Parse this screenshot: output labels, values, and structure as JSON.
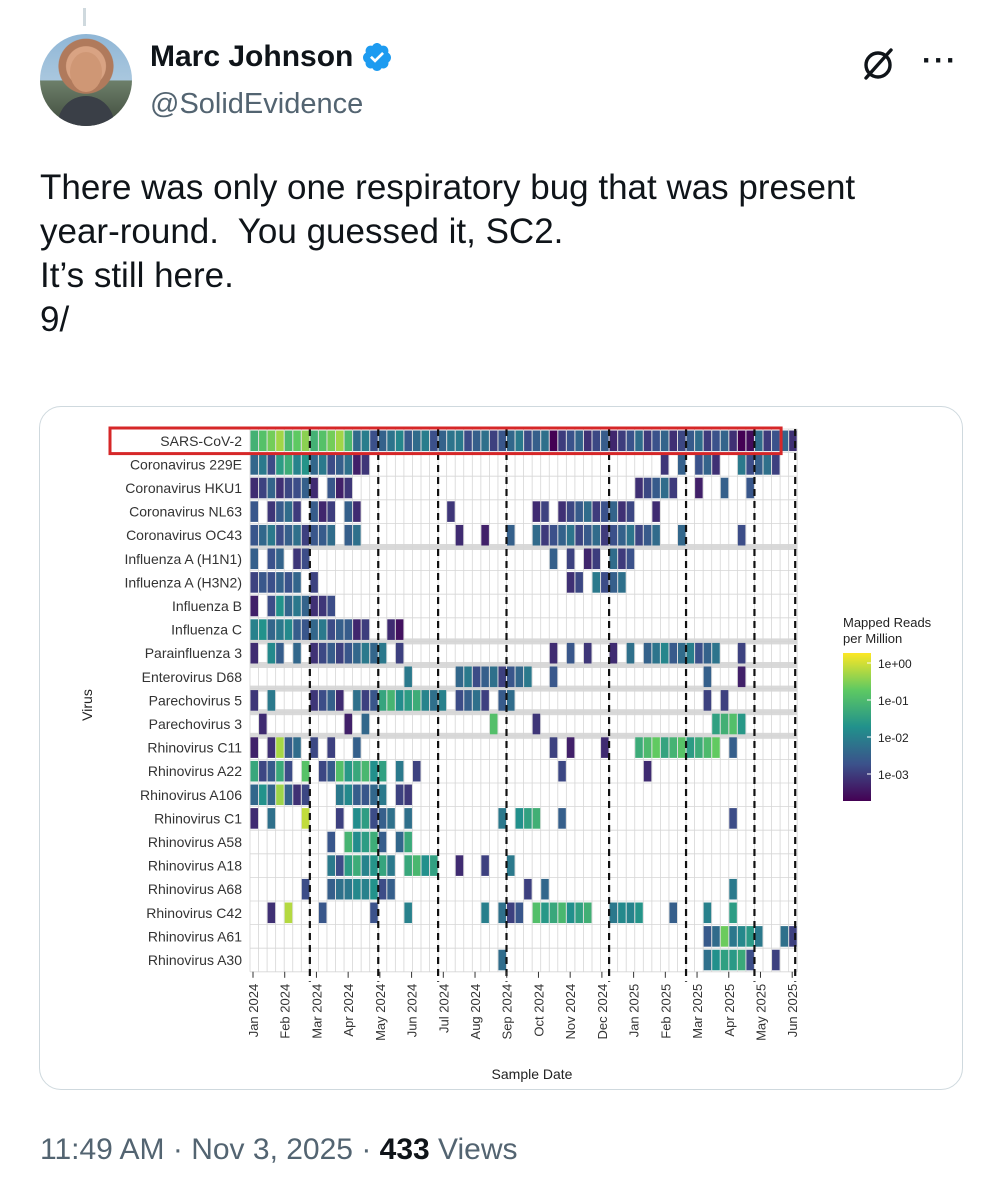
{
  "author": {
    "name": "Marc Johnson",
    "handle": "@SolidEvidence",
    "verified": true,
    "accent_color": "#1d9bf0"
  },
  "icons": {
    "grok": "grok-slash-icon",
    "more": "more-dots-icon"
  },
  "more_label": "···",
  "tweet": {
    "lines": [
      "There was only one respiratory bug that was present",
      "year-round.  You guessed it, SC2.",
      "It’s still here.",
      "9/"
    ]
  },
  "meta": {
    "time": "11:49 AM",
    "sep1": " · ",
    "date": "Nov 3, 2025",
    "sep2": " · ",
    "views_count": "433",
    "views_label": " Views"
  },
  "chart_data": {
    "type": "heatmap",
    "xlabel": "Sample Date",
    "ylabel": "Virus",
    "legend_title_line1": "Mapped Reads",
    "legend_title_line2": "per Million",
    "legend_ticks": [
      "1e+00",
      "1e-01",
      "1e-02",
      "1e-03"
    ],
    "highlighted_row": "SARS-CoV-2",
    "viruses": [
      "SARS-CoV-2",
      "Coronavirus 229E",
      "Coronavirus HKU1",
      "Coronavirus NL63",
      "Coronavirus OC43",
      "Influenza A (H1N1)",
      "Influenza A (H3N2)",
      "Influenza B",
      "Influenza C",
      "Parainfluenza 3",
      "Enterovirus D68",
      "Parechovirus 5",
      "Parechovirus 3",
      "Rhinovirus C11",
      "Rhinovirus A22",
      "Rhinovirus A106",
      "Rhinovirus C1",
      "Rhinovirus A58",
      "Rhinovirus A18",
      "Rhinovirus A68",
      "Rhinovirus C42",
      "Rhinovirus A61",
      "Rhinovirus A30"
    ],
    "gray_rows_after": [
      4,
      8,
      9,
      10,
      11,
      12
    ],
    "months": [
      "Jan 2024",
      "Feb 2024",
      "Mar 2024",
      "Apr 2024",
      "May 2024",
      "Jun 2024",
      "Jul 2024",
      "Aug 2024",
      "Sep 2024",
      "Oct 2024",
      "Nov 2024",
      "Dec 2024",
      "Jan 2025",
      "Feb 2025",
      "Mar 2025",
      "Apr 2025",
      "May 2025",
      "Jun 2025"
    ],
    "columns": 64,
    "dashed_column_positions": [
      7,
      15,
      22,
      30,
      42,
      51,
      59,
      65
    ],
    "colormap": [
      "#440154",
      "#3b528b",
      "#21918c",
      "#5ec962",
      "#fde725"
    ],
    "activity": [
      [
        [
          0,
          12,
          0.75
        ],
        [
          12,
          24,
          0.35
        ],
        [
          24,
          35,
          0.3
        ],
        [
          35,
          36,
          0.0
        ],
        [
          36,
          45,
          0.22
        ],
        [
          45,
          57,
          0.25
        ],
        [
          57,
          59,
          0.0
        ],
        [
          59,
          65,
          0.25
        ]
      ],
      [
        [
          0,
          3,
          0.3
        ],
        [
          3,
          7,
          0.55
        ],
        [
          7,
          12,
          0.3
        ],
        [
          12,
          14,
          0.2
        ],
        [
          48,
          49,
          0.2
        ],
        [
          50,
          51,
          0.2
        ],
        [
          52,
          55,
          0.25
        ],
        [
          57,
          62,
          0.3
        ]
      ],
      [
        [
          0,
          2,
          0.2
        ],
        [
          2,
          5,
          0.25
        ],
        [
          5,
          8,
          0.2
        ],
        [
          9,
          12,
          0.2
        ],
        [
          45,
          50,
          0.25
        ],
        [
          52,
          53,
          0.2
        ],
        [
          55,
          56,
          0.2
        ],
        [
          58,
          59,
          0.2
        ]
      ],
      [
        [
          0,
          1,
          0.2
        ],
        [
          2,
          3,
          0.2
        ],
        [
          3,
          6,
          0.25
        ],
        [
          7,
          10,
          0.22
        ],
        [
          11,
          13,
          0.2
        ],
        [
          23,
          24,
          0.2
        ],
        [
          33,
          35,
          0.2
        ],
        [
          36,
          45,
          0.25
        ],
        [
          47,
          48,
          0.2
        ]
      ],
      [
        [
          0,
          8,
          0.3
        ],
        [
          8,
          10,
          0.25
        ],
        [
          11,
          13,
          0.3
        ],
        [
          24,
          25,
          0.2
        ],
        [
          27,
          28,
          0.2
        ],
        [
          30,
          31,
          0.2
        ],
        [
          33,
          48,
          0.28
        ],
        [
          50,
          51,
          0.3
        ],
        [
          57,
          58,
          0.2
        ]
      ],
      [
        [
          0,
          1,
          0.2
        ],
        [
          2,
          4,
          0.25
        ],
        [
          5,
          7,
          0.2
        ],
        [
          35,
          36,
          0.2
        ],
        [
          37,
          38,
          0.2
        ],
        [
          39,
          41,
          0.22
        ],
        [
          42,
          45,
          0.25
        ]
      ],
      [
        [
          0,
          2,
          0.2
        ],
        [
          2,
          4,
          0.35
        ],
        [
          4,
          6,
          0.22
        ],
        [
          7,
          8,
          0.2
        ],
        [
          37,
          39,
          0.25
        ],
        [
          40,
          44,
          0.3
        ]
      ],
      [
        [
          0,
          1,
          0.2
        ],
        [
          2,
          3,
          0.2
        ],
        [
          3,
          6,
          0.4
        ],
        [
          6,
          8,
          0.25
        ],
        [
          8,
          10,
          0.2
        ]
      ],
      [
        [
          0,
          6,
          0.4
        ],
        [
          6,
          11,
          0.3
        ],
        [
          11,
          14,
          0.22
        ],
        [
          16,
          17,
          0.2
        ],
        [
          17,
          18,
          0.05
        ]
      ],
      [
        [
          0,
          1,
          0.2
        ],
        [
          2,
          4,
          0.4
        ],
        [
          5,
          6,
          0.3
        ],
        [
          7,
          10,
          0.22
        ],
        [
          10,
          14,
          0.3
        ],
        [
          14,
          16,
          0.4
        ],
        [
          17,
          18,
          0.3
        ],
        [
          35,
          36,
          0.2
        ],
        [
          37,
          38,
          0.2
        ],
        [
          39,
          40,
          0.2
        ],
        [
          42,
          43,
          0.2
        ],
        [
          44,
          45,
          0.3
        ],
        [
          46,
          55,
          0.35
        ],
        [
          57,
          58,
          0.2
        ]
      ],
      [
        [
          18,
          19,
          0.3
        ],
        [
          24,
          33,
          0.3
        ],
        [
          35,
          36,
          0.2
        ],
        [
          53,
          54,
          0.2
        ],
        [
          57,
          58,
          0.2
        ]
      ],
      [
        [
          0,
          1,
          0.2
        ],
        [
          2,
          3,
          0.3
        ],
        [
          7,
          11,
          0.2
        ],
        [
          12,
          15,
          0.3
        ],
        [
          15,
          21,
          0.55
        ],
        [
          21,
          23,
          0.4
        ],
        [
          24,
          28,
          0.3
        ],
        [
          29,
          31,
          0.25
        ],
        [
          53,
          54,
          0.2
        ],
        [
          55,
          56,
          0.3
        ]
      ],
      [
        [
          1,
          2,
          0.2
        ],
        [
          11,
          12,
          0.2
        ],
        [
          13,
          14,
          0.3
        ],
        [
          28,
          29,
          0.6
        ],
        [
          33,
          34,
          0.2
        ],
        [
          54,
          58,
          0.6
        ]
      ],
      [
        [
          0,
          1,
          0.1
        ],
        [
          2,
          3,
          0.25
        ],
        [
          3,
          4,
          0.9
        ],
        [
          4,
          6,
          0.25
        ],
        [
          7,
          8,
          0.22
        ],
        [
          9,
          10,
          0.3
        ],
        [
          12,
          13,
          0.2
        ],
        [
          35,
          36,
          0.2
        ],
        [
          37,
          38,
          0.2
        ],
        [
          41,
          42,
          0.2
        ],
        [
          45,
          55,
          0.65
        ],
        [
          56,
          57,
          0.3
        ]
      ],
      [
        [
          0,
          1,
          0.7
        ],
        [
          1,
          3,
          0.25
        ],
        [
          3,
          4,
          0.5
        ],
        [
          4,
          5,
          0.3
        ],
        [
          6,
          7,
          0.65
        ],
        [
          8,
          10,
          0.25
        ],
        [
          10,
          16,
          0.6
        ],
        [
          17,
          18,
          0.3
        ],
        [
          19,
          20,
          0.2
        ],
        [
          36,
          37,
          0.25
        ],
        [
          46,
          47,
          0.2
        ]
      ],
      [
        [
          0,
          1,
          0.3
        ],
        [
          1,
          3,
          0.4
        ],
        [
          3,
          4,
          0.85
        ],
        [
          4,
          7,
          0.25
        ],
        [
          10,
          13,
          0.4
        ],
        [
          13,
          16,
          0.3
        ],
        [
          17,
          18,
          0.2
        ],
        [
          18,
          19,
          0.1
        ]
      ],
      [
        [
          0,
          1,
          0.2
        ],
        [
          2,
          3,
          0.3
        ],
        [
          6,
          7,
          0.8
        ],
        [
          10,
          11,
          0.3
        ],
        [
          12,
          14,
          0.45
        ],
        [
          14,
          17,
          0.3
        ],
        [
          18,
          19,
          0.4
        ],
        [
          29,
          30,
          0.4
        ],
        [
          31,
          34,
          0.6
        ],
        [
          36,
          37,
          0.3
        ],
        [
          56,
          57,
          0.3
        ]
      ],
      [
        [
          9,
          10,
          0.3
        ],
        [
          11,
          15,
          0.55
        ],
        [
          15,
          16,
          0.4
        ],
        [
          17,
          18,
          0.3
        ],
        [
          18,
          19,
          0.5
        ]
      ],
      [
        [
          9,
          11,
          0.3
        ],
        [
          11,
          16,
          0.55
        ],
        [
          16,
          17,
          0.3
        ],
        [
          18,
          22,
          0.6
        ],
        [
          24,
          25,
          0.2
        ],
        [
          27,
          28,
          0.3
        ],
        [
          30,
          31,
          0.3
        ]
      ],
      [
        [
          6,
          7,
          0.2
        ],
        [
          9,
          11,
          0.3
        ],
        [
          11,
          13,
          0.5
        ],
        [
          13,
          15,
          0.4
        ],
        [
          15,
          17,
          0.3
        ],
        [
          32,
          33,
          0.3
        ],
        [
          34,
          35,
          0.3
        ],
        [
          56,
          57,
          0.3
        ]
      ],
      [
        [
          2,
          3,
          0.25
        ],
        [
          4,
          5,
          0.85
        ],
        [
          8,
          9,
          0.2
        ],
        [
          14,
          15,
          0.25
        ],
        [
          18,
          19,
          0.4
        ],
        [
          27,
          28,
          0.5
        ],
        [
          29,
          32,
          0.3
        ],
        [
          33,
          40,
          0.6
        ],
        [
          42,
          44,
          0.4
        ],
        [
          44,
          46,
          0.55
        ],
        [
          49,
          50,
          0.3
        ],
        [
          53,
          54,
          0.4
        ],
        [
          56,
          57,
          0.55
        ]
      ],
      [
        [
          53,
          55,
          0.35
        ],
        [
          55,
          56,
          0.7
        ],
        [
          56,
          59,
          0.5
        ],
        [
          59,
          60,
          0.3
        ],
        [
          62,
          64,
          0.3
        ]
      ],
      [
        [
          29,
          30,
          0.25
        ],
        [
          53,
          54,
          0.3
        ],
        [
          54,
          56,
          0.6
        ],
        [
          56,
          58,
          0.5
        ],
        [
          58,
          59,
          0.3
        ],
        [
          61,
          62,
          0.3
        ]
      ]
    ]
  }
}
